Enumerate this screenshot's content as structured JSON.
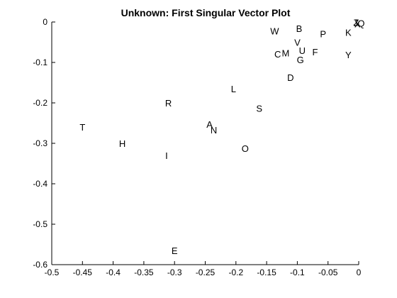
{
  "chart_data": {
    "type": "scatter",
    "title": "Unknown: First Singular Vector Plot",
    "xlabel": "",
    "ylabel": "",
    "xlim": [
      -0.5,
      0
    ],
    "ylim": [
      -0.6,
      0
    ],
    "x_ticks": [
      -0.5,
      -0.45,
      -0.4,
      -0.35,
      -0.3,
      -0.25,
      -0.2,
      -0.15,
      -0.1,
      -0.05,
      0
    ],
    "x_tick_labels": [
      "-0.5",
      "-0.45",
      "-0.4",
      "-0.35",
      "-0.3",
      "-0.25",
      "-0.2",
      "-0.15",
      "-0.1",
      "-0.05",
      "0"
    ],
    "y_ticks": [
      0,
      -0.1,
      -0.2,
      -0.3,
      -0.4,
      -0.5,
      -0.6
    ],
    "y_tick_labels": [
      "0",
      "-0.1",
      "-0.2",
      "-0.3",
      "-0.4",
      "-0.5",
      "-0.6"
    ],
    "grid": false,
    "points": [
      {
        "label": "T",
        "x": -0.45,
        "y": -0.26
      },
      {
        "label": "H",
        "x": -0.385,
        "y": -0.3
      },
      {
        "label": "R",
        "x": -0.31,
        "y": -0.2
      },
      {
        "label": "I",
        "x": -0.313,
        "y": -0.33
      },
      {
        "label": "E",
        "x": -0.3,
        "y": -0.565
      },
      {
        "label": "A",
        "x": -0.243,
        "y": -0.253
      },
      {
        "label": "N",
        "x": -0.236,
        "y": -0.267
      },
      {
        "label": "L",
        "x": -0.204,
        "y": -0.165
      },
      {
        "label": "O",
        "x": -0.185,
        "y": -0.312
      },
      {
        "label": "S",
        "x": -0.162,
        "y": -0.213
      },
      {
        "label": "W",
        "x": -0.137,
        "y": -0.022
      },
      {
        "label": "C",
        "x": -0.132,
        "y": -0.079
      },
      {
        "label": "M",
        "x": -0.119,
        "y": -0.076
      },
      {
        "label": "D",
        "x": -0.111,
        "y": -0.137
      },
      {
        "label": "B",
        "x": -0.097,
        "y": -0.016
      },
      {
        "label": "V",
        "x": -0.1,
        "y": -0.05
      },
      {
        "label": "U",
        "x": -0.092,
        "y": -0.07
      },
      {
        "label": "G",
        "x": -0.095,
        "y": -0.093
      },
      {
        "label": "F",
        "x": -0.071,
        "y": -0.074
      },
      {
        "label": "P",
        "x": -0.058,
        "y": -0.029
      },
      {
        "label": "K",
        "x": -0.017,
        "y": -0.025
      },
      {
        "label": "Y",
        "x": -0.017,
        "y": -0.081
      },
      {
        "label": "J",
        "x": -0.005,
        "y": -0.002
      },
      {
        "label": "X",
        "x": -0.002,
        "y": -0.004
      },
      {
        "label": "Z",
        "x": -0.004,
        "y": -0.001
      },
      {
        "label": "Q",
        "x": 0.004,
        "y": -0.003
      }
    ]
  }
}
